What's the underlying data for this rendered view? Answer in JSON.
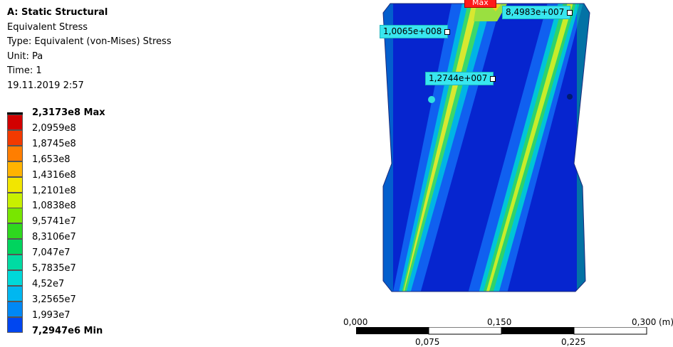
{
  "info": {
    "title": "A: Static Structural",
    "result": "Equivalent Stress",
    "type": "Type: Equivalent (von-Mises) Stress",
    "unit": "Unit: Pa",
    "time": "Time: 1",
    "date": "19.11.2019 2:57"
  },
  "legend": {
    "items": [
      {
        "label": "2,3173e8 Max",
        "color": "#d20000",
        "bold": true
      },
      {
        "label": "2,0959e8",
        "color": "#f23a00"
      },
      {
        "label": "1,8745e8",
        "color": "#ff7e00"
      },
      {
        "label": "1,653e8",
        "color": "#ffb300"
      },
      {
        "label": "1,4316e8",
        "color": "#f2e600"
      },
      {
        "label": "1,2101e8",
        "color": "#c8f000"
      },
      {
        "label": "1,0838e8",
        "color": "#78e600"
      },
      {
        "label": "9,5741e7",
        "color": "#2fd81f"
      },
      {
        "label": "8,3106e7",
        "color": "#00d45e"
      },
      {
        "label": "7,047e7",
        "color": "#00dba3"
      },
      {
        "label": "5,7835e7",
        "color": "#00d9d9"
      },
      {
        "label": "4,52e7",
        "color": "#00b7f0"
      },
      {
        "label": "3,2565e7",
        "color": "#0088f5"
      },
      {
        "label": "1,993e7",
        "color": "#0046f0"
      },
      {
        "label": "7,2947e6 Min",
        "color": "#0000d8",
        "bold": true
      }
    ]
  },
  "probes": {
    "max": "Max",
    "p1": "8,4983e+007",
    "p2": "1,0065e+008",
    "p3": "1,2744e+007"
  },
  "scale": {
    "unit": "(m)",
    "top": [
      "0,000",
      "0,150",
      "0,300"
    ],
    "bottom": [
      "0,075",
      "0,225"
    ]
  }
}
